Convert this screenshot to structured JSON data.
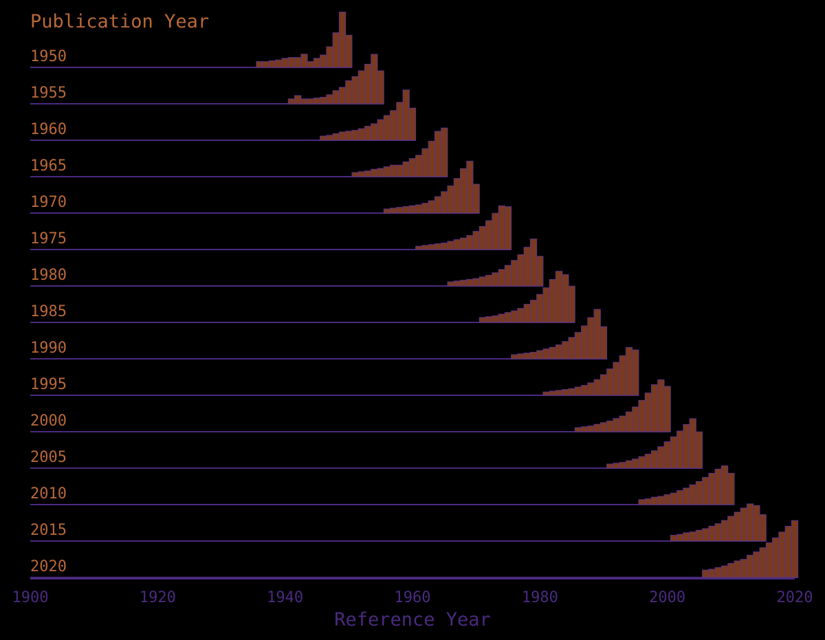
{
  "chart_data": {
    "type": "bar",
    "title": "Publication Year",
    "xlabel": "Reference Year",
    "xlim": [
      1900,
      2020
    ],
    "x_ticks": [
      1900,
      1920,
      1940,
      1960,
      1980,
      2000,
      2020
    ],
    "x_tick_labels": [
      "1900",
      "1920",
      "1940",
      "1960",
      "1980",
      "2000",
      "2020"
    ],
    "grid": false,
    "legend": "none",
    "note": "Ridgeline of per-year reference counts; each row's values are relative heights (row peak = 1.0), read from bar heights for the last 15 reference years of each publication year.",
    "colors": {
      "bar_fill": "#7a3a1f",
      "bar_edge": "#5a3485",
      "baseline": "#4a2a80",
      "label_text": "#b8683a",
      "axis_text": "#4a2a80",
      "background": "#000000"
    },
    "series": [
      {
        "name": "1950",
        "x": [
          1936,
          1937,
          1938,
          1939,
          1940,
          1941,
          1942,
          1943,
          1944,
          1945,
          1946,
          1947,
          1948,
          1949,
          1950
        ],
        "values": [
          0.07,
          0.07,
          0.08,
          0.09,
          0.11,
          0.12,
          0.12,
          0.16,
          0.07,
          0.11,
          0.15,
          0.25,
          0.42,
          0.67,
          0.39
        ]
      },
      {
        "name": "1955",
        "x": [
          1941,
          1942,
          1943,
          1944,
          1945,
          1946,
          1947,
          1948,
          1949,
          1950,
          1951,
          1952,
          1953,
          1954,
          1955
        ],
        "values": [
          0.06,
          0.1,
          0.06,
          0.06,
          0.07,
          0.08,
          0.11,
          0.16,
          0.2,
          0.28,
          0.33,
          0.4,
          0.48,
          0.6,
          0.4
        ]
      },
      {
        "name": "1960",
        "x": [
          1946,
          1947,
          1948,
          1949,
          1950,
          1951,
          1952,
          1953,
          1954,
          1955,
          1956,
          1957,
          1958,
          1959,
          1960
        ],
        "values": [
          0.05,
          0.06,
          0.08,
          0.1,
          0.11,
          0.12,
          0.14,
          0.17,
          0.2,
          0.25,
          0.3,
          0.36,
          0.46,
          0.61,
          0.39
        ]
      },
      {
        "name": "1965",
        "x": [
          1951,
          1952,
          1953,
          1954,
          1955,
          1956,
          1957,
          1958,
          1959,
          1960,
          1961,
          1962,
          1963,
          1964,
          1965
        ],
        "values": [
          0.05,
          0.06,
          0.07,
          0.09,
          0.1,
          0.12,
          0.14,
          0.14,
          0.18,
          0.22,
          0.26,
          0.34,
          0.43,
          0.55,
          0.59
        ]
      },
      {
        "name": "1970",
        "x": [
          1956,
          1957,
          1958,
          1959,
          1960,
          1961,
          1962,
          1963,
          1964,
          1965,
          1966,
          1967,
          1968,
          1969,
          1970
        ],
        "values": [
          0.05,
          0.06,
          0.07,
          0.08,
          0.09,
          0.1,
          0.12,
          0.15,
          0.2,
          0.26,
          0.33,
          0.42,
          0.54,
          0.63,
          0.35
        ]
      },
      {
        "name": "1975",
        "x": [
          1961,
          1962,
          1963,
          1964,
          1965,
          1966,
          1967,
          1968,
          1969,
          1970,
          1971,
          1972,
          1973,
          1974,
          1975
        ],
        "values": [
          0.04,
          0.05,
          0.06,
          0.07,
          0.08,
          0.1,
          0.12,
          0.14,
          0.17,
          0.22,
          0.28,
          0.35,
          0.44,
          0.53,
          0.52
        ]
      },
      {
        "name": "1980",
        "x": [
          1966,
          1967,
          1968,
          1969,
          1970,
          1971,
          1972,
          1973,
          1974,
          1975,
          1976,
          1977,
          1978,
          1979,
          1980
        ],
        "values": [
          0.05,
          0.06,
          0.07,
          0.08,
          0.09,
          0.11,
          0.13,
          0.16,
          0.2,
          0.25,
          0.31,
          0.38,
          0.47,
          0.57,
          0.36
        ]
      },
      {
        "name": "1985",
        "x": [
          1971,
          1972,
          1973,
          1974,
          1975,
          1976,
          1977,
          1978,
          1979,
          1980,
          1981,
          1982,
          1983,
          1984,
          1985
        ],
        "values": [
          0.06,
          0.07,
          0.08,
          0.1,
          0.12,
          0.14,
          0.17,
          0.22,
          0.27,
          0.34,
          0.42,
          0.52,
          0.62,
          0.58,
          0.44
        ]
      },
      {
        "name": "1990",
        "x": [
          1976,
          1977,
          1978,
          1979,
          1980,
          1981,
          1982,
          1983,
          1984,
          1985,
          1986,
          1987,
          1988,
          1989,
          1990
        ],
        "values": [
          0.05,
          0.06,
          0.07,
          0.08,
          0.1,
          0.12,
          0.14,
          0.17,
          0.21,
          0.26,
          0.32,
          0.4,
          0.5,
          0.6,
          0.39
        ]
      },
      {
        "name": "1995",
        "x": [
          1981,
          1982,
          1983,
          1984,
          1985,
          1986,
          1987,
          1988,
          1989,
          1990,
          1991,
          1992,
          1993,
          1994,
          1995
        ],
        "values": [
          0.04,
          0.05,
          0.06,
          0.07,
          0.08,
          0.1,
          0.12,
          0.15,
          0.19,
          0.25,
          0.32,
          0.4,
          0.48,
          0.58,
          0.55
        ]
      },
      {
        "name": "2000",
        "x": [
          1986,
          1987,
          1988,
          1989,
          1990,
          1991,
          1992,
          1993,
          1994,
          1995,
          1996,
          1997,
          1998,
          1999,
          2000
        ],
        "values": [
          0.05,
          0.06,
          0.07,
          0.09,
          0.11,
          0.13,
          0.16,
          0.19,
          0.24,
          0.3,
          0.38,
          0.47,
          0.57,
          0.63,
          0.55
        ]
      },
      {
        "name": "2005",
        "x": [
          1991,
          1992,
          1993,
          1994,
          1995,
          1996,
          1997,
          1998,
          1999,
          2000,
          2001,
          2002,
          2003,
          2004,
          2005
        ],
        "values": [
          0.05,
          0.06,
          0.07,
          0.09,
          0.11,
          0.14,
          0.17,
          0.21,
          0.26,
          0.32,
          0.38,
          0.45,
          0.53,
          0.6,
          0.44
        ]
      },
      {
        "name": "2010",
        "x": [
          1996,
          1997,
          1998,
          1999,
          2000,
          2001,
          2002,
          2003,
          2004,
          2005,
          2006,
          2007,
          2008,
          2009,
          2010
        ],
        "values": [
          0.06,
          0.07,
          0.09,
          0.1,
          0.12,
          0.14,
          0.17,
          0.2,
          0.24,
          0.28,
          0.33,
          0.38,
          0.43,
          0.47,
          0.38
        ]
      },
      {
        "name": "2015",
        "x": [
          2001,
          2002,
          2003,
          2004,
          2005,
          2006,
          2007,
          2008,
          2009,
          2010,
          2011,
          2012,
          2013,
          2014,
          2015
        ],
        "values": [
          0.07,
          0.08,
          0.1,
          0.11,
          0.13,
          0.15,
          0.18,
          0.21,
          0.25,
          0.3,
          0.35,
          0.4,
          0.45,
          0.43,
          0.32
        ]
      },
      {
        "name": "2020",
        "x": [
          2006,
          2007,
          2008,
          2009,
          2010,
          2011,
          2012,
          2013,
          2014,
          2015,
          2016,
          2017,
          2018,
          2019,
          2020
        ],
        "values": [
          0.09,
          0.1,
          0.12,
          0.14,
          0.17,
          0.2,
          0.22,
          0.27,
          0.31,
          0.36,
          0.42,
          0.48,
          0.55,
          0.62,
          0.69
        ]
      }
    ]
  }
}
